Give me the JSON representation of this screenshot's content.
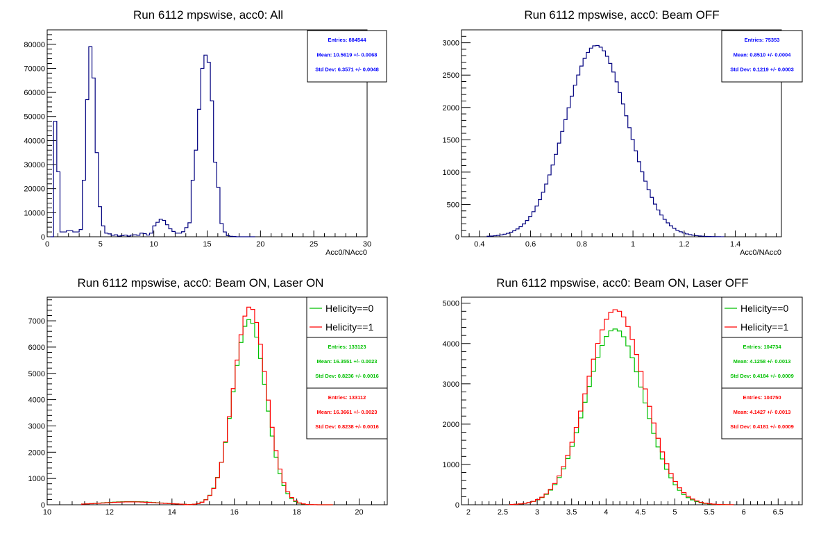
{
  "chart_data": [
    {
      "type": "histogram",
      "title": "Run 6112 mpswise, acc0: All",
      "xlabel": "Acc0/NAcc0",
      "ylabel": "",
      "xlim": [
        0,
        30
      ],
      "ylim": [
        0,
        86000
      ],
      "xticks": [
        0,
        5,
        10,
        15,
        20,
        25,
        30
      ],
      "yticks": [
        0,
        10000,
        20000,
        30000,
        40000,
        50000,
        60000,
        70000,
        80000
      ],
      "legend": [],
      "stats": [
        {
          "color": "#0000ff",
          "lines": [
            "Entries: 884544",
            "Mean: 10.5619 +/- 0.0068",
            "Std Dev: 6.3571 +/- 0.0048"
          ]
        }
      ],
      "series": [
        {
          "color": "#00007f",
          "x": [
            0.3,
            0.6,
            0.9,
            1.2,
            1.5,
            1.8,
            2.1,
            2.4,
            2.7,
            3.0,
            3.3,
            3.6,
            3.9,
            4.2,
            4.5,
            4.8,
            5.1,
            5.4,
            5.7,
            6.0,
            6.3,
            6.6,
            6.9,
            7.2,
            7.5,
            7.8,
            8.1,
            8.4,
            8.7,
            9.0,
            9.3,
            9.6,
            9.9,
            10.2,
            10.5,
            10.8,
            11.1,
            11.4,
            11.7,
            12.0,
            12.3,
            12.6,
            12.9,
            13.2,
            13.5,
            13.8,
            14.1,
            14.4,
            14.7,
            15.0,
            15.3,
            15.6,
            15.9,
            16.2,
            16.5,
            16.8,
            17.1,
            17.4,
            17.7,
            18.0,
            18.3,
            18.6,
            18.9,
            19.2
          ],
          "y": [
            0,
            48000,
            27000,
            2000,
            2000,
            2500,
            2500,
            2000,
            2000,
            3000,
            23500,
            57000,
            79000,
            66000,
            35000,
            12500,
            4500,
            1500,
            1200,
            600,
            800,
            300,
            500,
            700,
            300,
            700,
            800,
            600,
            1500,
            1300,
            700,
            1500,
            4500,
            6000,
            7300,
            6800,
            5000,
            3300,
            2200,
            1500,
            1500,
            2100,
            3800,
            5800,
            23500,
            36000,
            53000,
            70000,
            75500,
            72500,
            56500,
            31000,
            20500,
            5500,
            2000,
            500,
            200,
            100,
            0,
            0,
            0,
            0,
            0,
            0
          ]
        }
      ]
    },
    {
      "type": "histogram",
      "title": "Run 6112 mpswise, acc0: Beam OFF",
      "xlabel": "Acc0/NAcc0",
      "ylabel": "",
      "xlim": [
        0.33,
        1.58
      ],
      "ylim": [
        0,
        3200
      ],
      "xticks": [
        0.4,
        0.6,
        0.8,
        1,
        1.2,
        1.4
      ],
      "yticks": [
        0,
        500,
        1000,
        1500,
        2000,
        2500,
        3000
      ],
      "legend": [],
      "stats": [
        {
          "color": "#0000ff",
          "lines": [
            "Entries: 75353",
            "Mean: 0.8510 +/- 0.0004",
            "Std Dev: 0.1219 +/- 0.0003"
          ]
        }
      ],
      "series": [
        {
          "color": "#00007f",
          "gauss": {
            "mean": 0.857,
            "sigma": 0.1219,
            "peak": 2960,
            "binwidth": 0.0125,
            "start": 0.43,
            "end": 1.35
          }
        }
      ]
    },
    {
      "type": "histogram",
      "title": "Run 6112 mpswise, acc0: Beam ON, Laser ON",
      "xlabel": "",
      "ylabel": "",
      "xlim": [
        10,
        20.9
      ],
      "ylim": [
        0,
        7900
      ],
      "xticks": [
        10,
        12,
        14,
        16,
        18,
        20
      ],
      "yticks": [
        0,
        1000,
        2000,
        3000,
        4000,
        5000,
        6000,
        7000
      ],
      "legend": [
        {
          "label": "Helicity==0",
          "color": "#00c000"
        },
        {
          "label": "Helicity==1",
          "color": "#ff0000"
        }
      ],
      "stats": [
        {
          "color": "#00c000",
          "lines": [
            "Entries: 133123",
            "Mean: 16.3551 +/- 0.0023",
            "Std Dev: 0.8236 +/- 0.0016"
          ]
        },
        {
          "color": "#ff0000",
          "lines": [
            "Entries: 133112",
            "Mean: 16.3661 +/- 0.0023",
            "Std Dev: 0.8238 +/- 0.0016"
          ]
        }
      ],
      "series": [
        {
          "color": "#00c000",
          "gauss": {
            "mean": 16.48,
            "sigma": 0.52,
            "peak": 7050,
            "binwidth": 0.125,
            "start": 14.4,
            "end": 19.1
          },
          "bump": {
            "from": 11.1,
            "to": 14.4,
            "center": 12.7,
            "height": 120
          }
        },
        {
          "color": "#ff0000",
          "gauss": {
            "mean": 16.5,
            "sigma": 0.52,
            "peak": 7540,
            "binwidth": 0.125,
            "start": 14.4,
            "end": 19.1
          },
          "bump": {
            "from": 11.1,
            "to": 14.4,
            "center": 12.7,
            "height": 110
          }
        }
      ]
    },
    {
      "type": "histogram",
      "title": "Run 6112 mpswise, acc0: Beam ON, Laser OFF",
      "xlabel": "",
      "ylabel": "",
      "xlim": [
        1.9,
        6.85
      ],
      "ylim": [
        0,
        5150
      ],
      "xticks": [
        2,
        2.5,
        3,
        3.5,
        4,
        4.5,
        5,
        5.5,
        6,
        6.5
      ],
      "yticks": [
        0,
        1000,
        2000,
        3000,
        4000,
        5000
      ],
      "legend": [
        {
          "label": "Helicity==0",
          "color": "#00c000"
        },
        {
          "label": "Helicity==1",
          "color": "#ff0000"
        }
      ],
      "stats": [
        {
          "color": "#00c000",
          "lines": [
            "Entries: 104734",
            "Mean: 4.1258 +/- 0.0013",
            "Std Dev: 0.4184 +/- 0.0009"
          ]
        },
        {
          "color": "#ff0000",
          "lines": [
            "Entries: 104750",
            "Mean: 4.1427 +/- 0.0013",
            "Std Dev: 0.4181 +/- 0.0009"
          ]
        }
      ],
      "series": [
        {
          "color": "#00c000",
          "gauss": {
            "mean": 4.13,
            "sigma": 0.42,
            "peak": 4360,
            "binwidth": 0.0625,
            "start": 2.6,
            "end": 5.8
          }
        },
        {
          "color": "#ff0000",
          "gauss": {
            "mean": 4.14,
            "sigma": 0.42,
            "peak": 4840,
            "binwidth": 0.0625,
            "start": 2.6,
            "end": 5.8
          }
        }
      ]
    }
  ]
}
